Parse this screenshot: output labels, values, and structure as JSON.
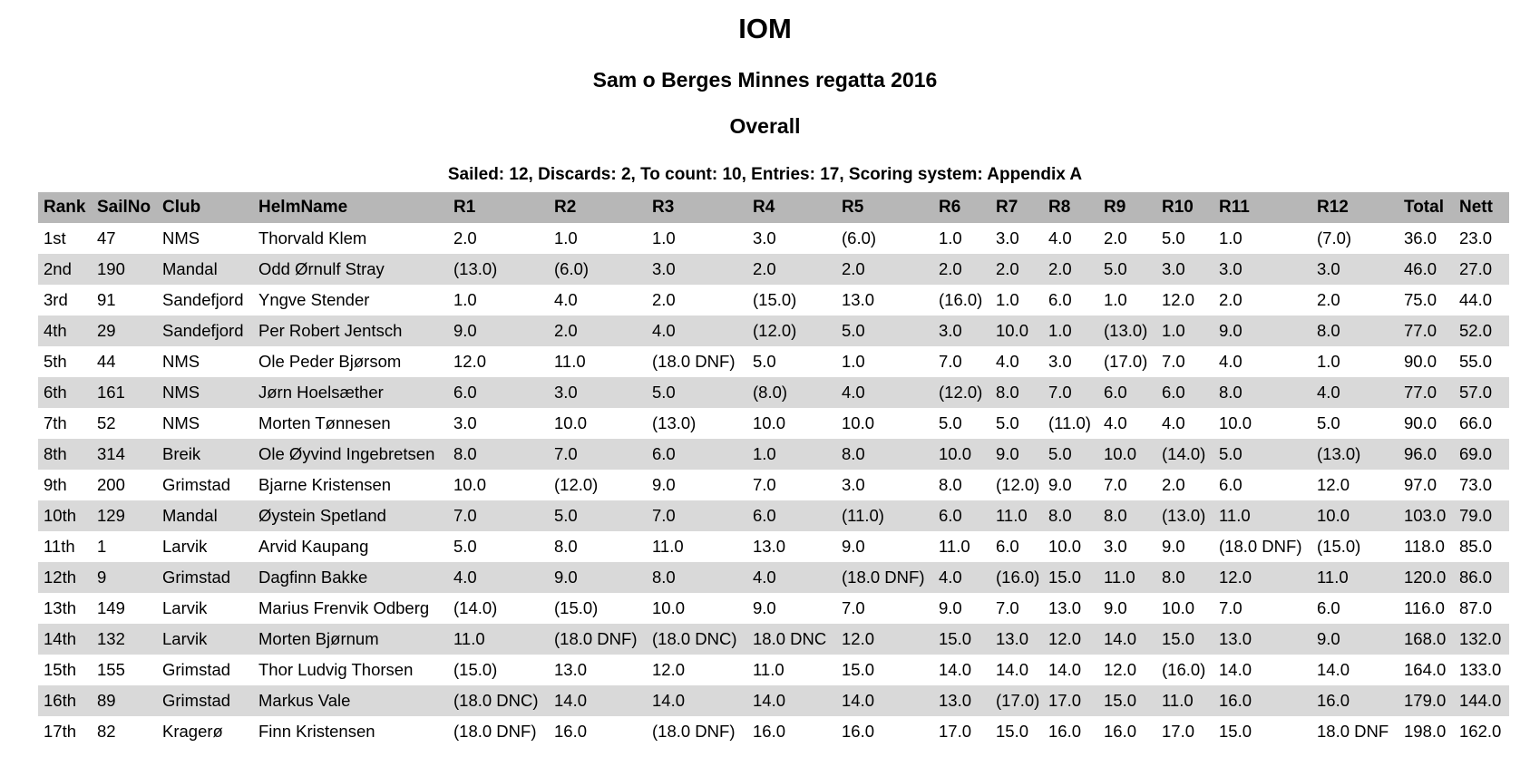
{
  "title": "IOM",
  "subtitle": "Sam o Berges Minnes regatta 2016",
  "section": "Overall",
  "summary": "Sailed: 12, Discards: 2, To count: 10, Entries: 17, Scoring system: Appendix A",
  "headers": [
    "Rank",
    "SailNo",
    "Club",
    "HelmName",
    "R1",
    "R2",
    "R3",
    "R4",
    "R5",
    "R6",
    "R7",
    "R8",
    "R9",
    "R10",
    "R11",
    "R12",
    "Total",
    "Nett"
  ],
  "rows": [
    [
      "1st",
      "47",
      "NMS",
      "Thorvald Klem",
      "2.0",
      "1.0",
      "1.0",
      "3.0",
      "(6.0)",
      "1.0",
      "3.0",
      "4.0",
      "2.0",
      "5.0",
      "1.0",
      "(7.0)",
      "36.0",
      "23.0"
    ],
    [
      "2nd",
      "190",
      "Mandal",
      "Odd Ørnulf Stray",
      "(13.0)",
      "(6.0)",
      "3.0",
      "2.0",
      "2.0",
      "2.0",
      "2.0",
      "2.0",
      "5.0",
      "3.0",
      "3.0",
      "3.0",
      "46.0",
      "27.0"
    ],
    [
      "3rd",
      "91",
      "Sandefjord",
      "Yngve Stender",
      "1.0",
      "4.0",
      "2.0",
      "(15.0)",
      "13.0",
      "(16.0)",
      "1.0",
      "6.0",
      "1.0",
      "12.0",
      "2.0",
      "2.0",
      "75.0",
      "44.0"
    ],
    [
      "4th",
      "29",
      "Sandefjord",
      "Per Robert Jentsch",
      "9.0",
      "2.0",
      "4.0",
      "(12.0)",
      "5.0",
      "3.0",
      "10.0",
      "1.0",
      "(13.0)",
      "1.0",
      "9.0",
      "8.0",
      "77.0",
      "52.0"
    ],
    [
      "5th",
      "44",
      "NMS",
      "Ole Peder Bjørsom",
      "12.0",
      "11.0",
      "(18.0 DNF)",
      "5.0",
      "1.0",
      "7.0",
      "4.0",
      "3.0",
      "(17.0)",
      "7.0",
      "4.0",
      "1.0",
      "90.0",
      "55.0"
    ],
    [
      "6th",
      "161",
      "NMS",
      "Jørn Hoelsæther",
      "6.0",
      "3.0",
      "5.0",
      "(8.0)",
      "4.0",
      "(12.0)",
      "8.0",
      "7.0",
      "6.0",
      "6.0",
      "8.0",
      "4.0",
      "77.0",
      "57.0"
    ],
    [
      "7th",
      "52",
      "NMS",
      "Morten Tønnesen",
      "3.0",
      "10.0",
      "(13.0)",
      "10.0",
      "10.0",
      "5.0",
      "5.0",
      "(11.0)",
      "4.0",
      "4.0",
      "10.0",
      "5.0",
      "90.0",
      "66.0"
    ],
    [
      "8th",
      "314",
      "Breik",
      "Ole Øyvind Ingebretsen",
      "8.0",
      "7.0",
      "6.0",
      "1.0",
      "8.0",
      "10.0",
      "9.0",
      "5.0",
      "10.0",
      "(14.0)",
      "5.0",
      "(13.0)",
      "96.0",
      "69.0"
    ],
    [
      "9th",
      "200",
      "Grimstad",
      "Bjarne Kristensen",
      "10.0",
      "(12.0)",
      "9.0",
      "7.0",
      "3.0",
      "8.0",
      "(12.0)",
      "9.0",
      "7.0",
      "2.0",
      "6.0",
      "12.0",
      "97.0",
      "73.0"
    ],
    [
      "10th",
      "129",
      "Mandal",
      "Øystein Spetland",
      "7.0",
      "5.0",
      "7.0",
      "6.0",
      "(11.0)",
      "6.0",
      "11.0",
      "8.0",
      "8.0",
      "(13.0)",
      "11.0",
      "10.0",
      "103.0",
      "79.0"
    ],
    [
      "11th",
      "1",
      "Larvik",
      "Arvid Kaupang",
      "5.0",
      "8.0",
      "11.0",
      "13.0",
      "9.0",
      "11.0",
      "6.0",
      "10.0",
      "3.0",
      "9.0",
      "(18.0 DNF)",
      "(15.0)",
      "118.0",
      "85.0"
    ],
    [
      "12th",
      "9",
      "Grimstad",
      "Dagfinn Bakke",
      "4.0",
      "9.0",
      "8.0",
      "4.0",
      "(18.0 DNF)",
      "4.0",
      "(16.0)",
      "15.0",
      "11.0",
      "8.0",
      "12.0",
      "11.0",
      "120.0",
      "86.0"
    ],
    [
      "13th",
      "149",
      "Larvik",
      "Marius Frenvik Odberg",
      "(14.0)",
      "(15.0)",
      "10.0",
      "9.0",
      "7.0",
      "9.0",
      "7.0",
      "13.0",
      "9.0",
      "10.0",
      "7.0",
      "6.0",
      "116.0",
      "87.0"
    ],
    [
      "14th",
      "132",
      "Larvik",
      "Morten Bjørnum",
      "11.0",
      "(18.0 DNF)",
      "(18.0 DNC)",
      "18.0 DNC",
      "12.0",
      "15.0",
      "13.0",
      "12.0",
      "14.0",
      "15.0",
      "13.0",
      "9.0",
      "168.0",
      "132.0"
    ],
    [
      "15th",
      "155",
      "Grimstad",
      "Thor Ludvig Thorsen",
      "(15.0)",
      "13.0",
      "12.0",
      "11.0",
      "15.0",
      "14.0",
      "14.0",
      "14.0",
      "12.0",
      "(16.0)",
      "14.0",
      "14.0",
      "164.0",
      "133.0"
    ],
    [
      "16th",
      "89",
      "Grimstad",
      "Markus Vale",
      "(18.0 DNC)",
      "14.0",
      "14.0",
      "14.0",
      "14.0",
      "13.0",
      "(17.0)",
      "17.0",
      "15.0",
      "11.0",
      "16.0",
      "16.0",
      "179.0",
      "144.0"
    ],
    [
      "17th",
      "82",
      "Kragerø",
      "Finn Kristensen",
      "(18.0 DNF)",
      "16.0",
      "(18.0 DNF)",
      "16.0",
      "16.0",
      "17.0",
      "15.0",
      "16.0",
      "16.0",
      "17.0",
      "15.0",
      "18.0 DNF",
      "198.0",
      "162.0"
    ]
  ]
}
